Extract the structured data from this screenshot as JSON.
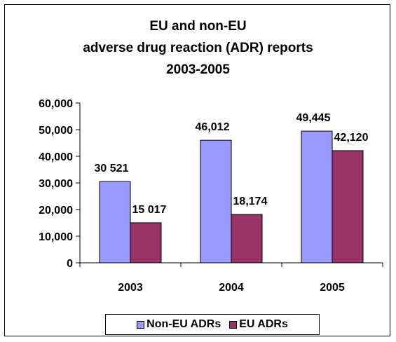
{
  "chart_data": {
    "type": "bar",
    "title_lines": [
      "EU and non-EU",
      "adverse drug reaction (ADR) reports",
      "2003-2005"
    ],
    "categories": [
      "2003",
      "2004",
      "2005"
    ],
    "series": [
      {
        "name": "Non-EU ADRs",
        "values": [
          30521,
          46012,
          49445
        ],
        "labels": [
          "30 521",
          "46,012",
          "49,445"
        ],
        "color": "#9999ff"
      },
      {
        "name": "EU ADRs",
        "values": [
          15017,
          18174,
          42120
        ],
        "labels": [
          "15 017",
          "18,174",
          "42,120"
        ],
        "color": "#993366"
      }
    ],
    "ylim": [
      0,
      60000
    ],
    "yticks": [
      0,
      10000,
      20000,
      30000,
      40000,
      50000,
      60000
    ],
    "ytick_labels": [
      "0",
      "10,000",
      "20,000",
      "30,000",
      "40,000",
      "50,000",
      "60,000"
    ],
    "grid": false,
    "legend_position": "bottom"
  }
}
